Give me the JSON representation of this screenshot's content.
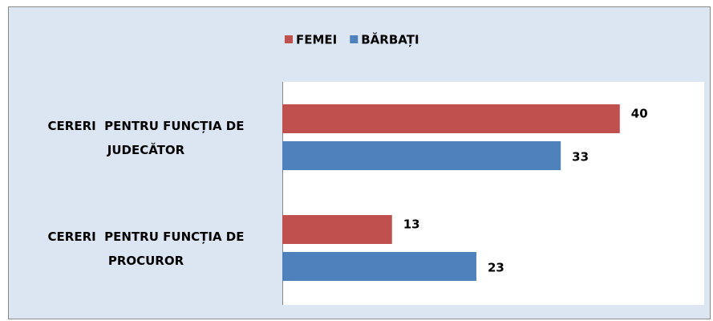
{
  "chart_data": {
    "type": "hbar",
    "categories": [
      "CERERI  PENTRU FUNCȚIA DE JUDECĂTOR",
      "CERERI  PENTRU FUNCȚIA DE PROCUROR"
    ],
    "series": [
      {
        "name": "FEMEI",
        "color": "#c0504d",
        "values": [
          40,
          13
        ]
      },
      {
        "name": "BĂRBAȚI",
        "color": "#4f81bd",
        "values": [
          33,
          23
        ]
      }
    ],
    "xlim": [
      0,
      50
    ],
    "legend": "top"
  }
}
